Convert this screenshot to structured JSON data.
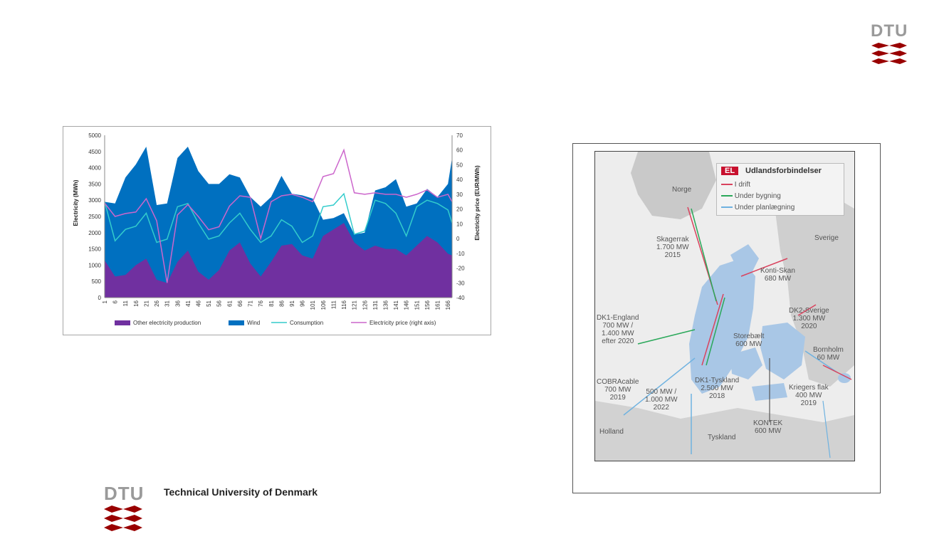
{
  "slide": {
    "logo_top": "DTU",
    "logo_bottom": "DTU",
    "university_name": "Technical University of Denmark",
    "brand_color": "#990000"
  },
  "chart_data": {
    "type": "area",
    "title": "",
    "xlabel": "",
    "ylabel": "Electricity (MWh)",
    "y2label": "Electricity price (EUR/MWh)",
    "ylim": [
      0,
      5000
    ],
    "y2lim": [
      -40,
      70
    ],
    "yticks": [
      0,
      500,
      1000,
      1500,
      2000,
      2500,
      3000,
      3500,
      4000,
      4500,
      5000
    ],
    "y2ticks": [
      -40,
      -30,
      -20,
      -10,
      0,
      10,
      20,
      30,
      40,
      50,
      60,
      70
    ],
    "xticks": [
      "1",
      "6",
      "11",
      "16",
      "21",
      "26",
      "31",
      "36",
      "41",
      "46",
      "51",
      "56",
      "61",
      "66",
      "71",
      "76",
      "81",
      "86",
      "91",
      "96",
      "101",
      "106",
      "111",
      "116",
      "121",
      "126",
      "131",
      "136",
      "141",
      "146",
      "151",
      "156",
      "161",
      "166"
    ],
    "x": [
      1,
      6,
      11,
      16,
      21,
      26,
      31,
      36,
      41,
      46,
      51,
      56,
      61,
      66,
      71,
      76,
      81,
      86,
      91,
      96,
      101,
      106,
      111,
      116,
      121,
      126,
      131,
      136,
      141,
      146,
      151,
      156,
      161,
      166,
      168
    ],
    "series": [
      {
        "name": "Other electricity production",
        "kind": "area",
        "axis": "left",
        "color": "#7030a0",
        "values": [
          1150,
          650,
          700,
          1000,
          1200,
          550,
          450,
          1100,
          1450,
          800,
          550,
          850,
          1450,
          1700,
          1050,
          650,
          1100,
          1600,
          1650,
          1300,
          1200,
          1900,
          2100,
          2300,
          1700,
          1450,
          1600,
          1500,
          1500,
          1300,
          1600,
          1900,
          1700,
          1350,
          1300
        ]
      },
      {
        "name": "Wind",
        "kind": "area",
        "axis": "left",
        "color": "#0070c0",
        "values": [
          2950,
          2900,
          3700,
          4100,
          4650,
          2850,
          2900,
          4300,
          4650,
          3900,
          3500,
          3500,
          3800,
          3700,
          3100,
          2800,
          3100,
          3750,
          3200,
          3150,
          3050,
          2400,
          2450,
          2600,
          1950,
          2000,
          3300,
          3400,
          3650,
          2800,
          2900,
          3350,
          3100,
          3500,
          4300
        ]
      },
      {
        "name": "Consumption",
        "kind": "line",
        "axis": "left",
        "color": "#33cccc",
        "values": [
          2950,
          1750,
          2100,
          2200,
          2600,
          1700,
          1800,
          2800,
          2900,
          2300,
          1800,
          1900,
          2300,
          2600,
          2100,
          1700,
          1900,
          2400,
          2200,
          1700,
          1900,
          2800,
          2850,
          3200,
          1950,
          2050,
          3000,
          2900,
          2600,
          1900,
          2800,
          3000,
          2900,
          2700,
          2300
        ]
      },
      {
        "name": "Electricity price (right axis)",
        "kind": "line",
        "axis": "right",
        "color": "#cc66cc",
        "values": [
          24,
          15,
          17,
          18,
          27,
          12,
          -30,
          16,
          23,
          15,
          6,
          8,
          22,
          29,
          28,
          0,
          25,
          29,
          30,
          28,
          25,
          42,
          44,
          60,
          31,
          30,
          31,
          30,
          30,
          28,
          30,
          33,
          28,
          30,
          25
        ]
      }
    ],
    "legend_position": "bottom",
    "grid": false
  },
  "map": {
    "legend_tag": "EL",
    "legend_title": "Udlandsforbindelser",
    "legend_items": [
      {
        "label": "I drift",
        "color": "#d9435e"
      },
      {
        "label": "Under bygning",
        "color": "#2aa85a"
      },
      {
        "label": "Under planlægning",
        "color": "#6fb2e0"
      }
    ],
    "labels": {
      "norge": "Norge",
      "sverige": "Sverige",
      "skagerrak": "Skagerrak\n1.700 MW\n2015",
      "konti_skan": "Konti-Skan\n680 MW",
      "dk2_sverige": "DK2-Sverige\n1.300 MW\n2020",
      "storebaelt": "Storebælt\n600 MW",
      "bornholm": "Bornholm\n60 MW",
      "dk1_england": "DK1-England\n700 MW /\n1.400 MW\nefter 2020",
      "dk1_tyskland": "DK1-Tyskland\n2.500 MW\n2018",
      "cobracable": "COBRAcable\n700 MW\n2019",
      "dk1_tys_2022": "500 MW /\n1.000 MW\n2022",
      "kriegers_flak": "Kriegers flak\n400 MW\n2019",
      "kontek": "KONTEK\n600 MW",
      "holland": "Holland",
      "tyskland": "Tyskland"
    }
  }
}
